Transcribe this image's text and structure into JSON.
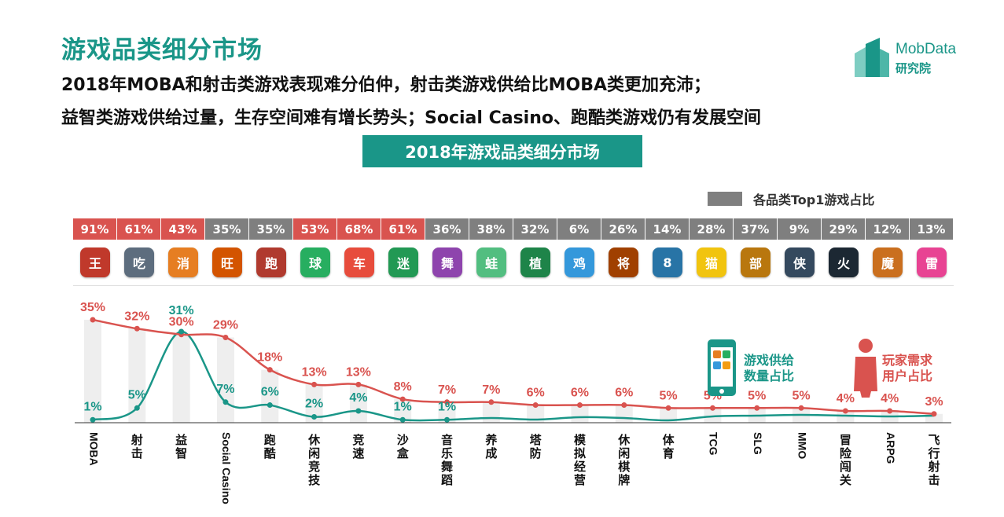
{
  "header": {
    "title": "游戏品类细分市场",
    "subtitle_line1": "2018年MOBA和射击类游戏表现难分伯仲，射击类游戏供给比MOBA类更加充沛；",
    "subtitle_line2": "益智类游戏供给过量，生存空间难有增长势头；Social Casino、跑酷类游戏仍有发展空间",
    "banner": "2018年游戏品类细分市场"
  },
  "logo": {
    "name": "MobData",
    "sub": "研究院"
  },
  "legend_top": "各品类Top1游戏占比",
  "top1_share": {
    "values": [
      "91%",
      "61%",
      "43%",
      "35%",
      "35%",
      "53%",
      "68%",
      "61%",
      "36%",
      "38%",
      "32%",
      "6%",
      "26%",
      "14%",
      "28%",
      "37%",
      "9%",
      "29%",
      "12%",
      "13%"
    ],
    "highlight": [
      true,
      true,
      true,
      false,
      false,
      true,
      true,
      true,
      false,
      false,
      false,
      false,
      false,
      false,
      false,
      false,
      false,
      false,
      false,
      false
    ],
    "highlight_color": "#d9534f",
    "normal_color": "#7f7f7f"
  },
  "app_icons": [
    {
      "name": "moba-game-icon",
      "color": "#c0392b",
      "glyph": "王"
    },
    {
      "name": "shooter-game-icon",
      "color": "#5d6d7e",
      "glyph": "吃"
    },
    {
      "name": "puzzle-game-icon",
      "color": "#e67e22",
      "glyph": "消"
    },
    {
      "name": "casino-game-icon",
      "color": "#d35400",
      "glyph": "旺"
    },
    {
      "name": "parkour-game-icon",
      "color": "#b03a2e",
      "glyph": "跑"
    },
    {
      "name": "casual-game-icon",
      "color": "#27ae60",
      "glyph": "球"
    },
    {
      "name": "racing-game-icon",
      "color": "#e74c3c",
      "glyph": "车"
    },
    {
      "name": "sandbox-game-icon",
      "color": "#229954",
      "glyph": "迷"
    },
    {
      "name": "music-game-icon",
      "color": "#8e44ad",
      "glyph": "舞"
    },
    {
      "name": "nurture-game-icon",
      "color": "#52be80",
      "glyph": "蛙"
    },
    {
      "name": "tower-defense-icon",
      "color": "#1e8449",
      "glyph": "植"
    },
    {
      "name": "simulation-game-icon",
      "color": "#3498db",
      "glyph": "鸡"
    },
    {
      "name": "chess-game-icon",
      "color": "#a04000",
      "glyph": "将"
    },
    {
      "name": "sports-game-icon",
      "color": "#2874a6",
      "glyph": "8"
    },
    {
      "name": "tcg-game-icon",
      "color": "#f1c40f",
      "glyph": "猫"
    },
    {
      "name": "slg-game-icon",
      "color": "#b9770e",
      "glyph": "部"
    },
    {
      "name": "mmo-game-icon",
      "color": "#34495e",
      "glyph": "侠"
    },
    {
      "name": "adventure-game-icon",
      "color": "#1c2833",
      "glyph": "火"
    },
    {
      "name": "arpg-game-icon",
      "color": "#ca6f1e",
      "glyph": "魔"
    },
    {
      "name": "flight-shooter-icon",
      "color": "#e84393",
      "glyph": "雷"
    }
  ],
  "chart_data": {
    "type": "line",
    "categories": [
      "MOBA",
      "射击",
      "益智",
      "Social Casino",
      "跑酷",
      "休闲竞技",
      "竞速",
      "沙盒",
      "音乐舞蹈",
      "养成",
      "塔防",
      "模拟经营",
      "休闲棋牌",
      "体育",
      "TCG",
      "SLG",
      "MMO",
      "冒险闯关",
      "ARPG",
      "飞行射击"
    ],
    "series": [
      {
        "name": "玩家需求用户占比",
        "color": "#d9534f",
        "values": [
          35,
          32,
          30,
          29,
          18,
          13,
          13,
          8,
          7,
          7,
          6,
          6,
          6,
          5,
          5,
          5,
          5,
          4,
          4,
          3
        ],
        "labels": [
          "35%",
          "32%",
          "30%",
          "29%",
          "18%",
          "13%",
          "13%",
          "8%",
          "7%",
          "7%",
          "6%",
          "6%",
          "6%",
          "5%",
          "5%",
          "5%",
          "5%",
          "4%",
          "4%",
          "3%"
        ]
      },
      {
        "name": "游戏供给数量占比",
        "color": "#1a9688",
        "values": [
          1,
          5,
          31,
          7,
          6,
          2,
          4,
          1,
          1,
          null,
          null,
          null,
          null,
          null,
          null,
          null,
          null,
          null,
          null,
          null
        ],
        "labels": [
          "1%",
          "5%",
          "31%",
          "7%",
          "6%",
          "2%",
          "4%",
          "1%",
          "1%",
          "",
          "",
          "",
          "",
          "",
          "",
          "",
          "",
          "",
          "",
          ""
        ]
      }
    ],
    "supply_label": "游戏供给数量占比",
    "demand_label": "玩家需求用户占比",
    "ylim": [
      0,
      38
    ],
    "grid": false
  }
}
